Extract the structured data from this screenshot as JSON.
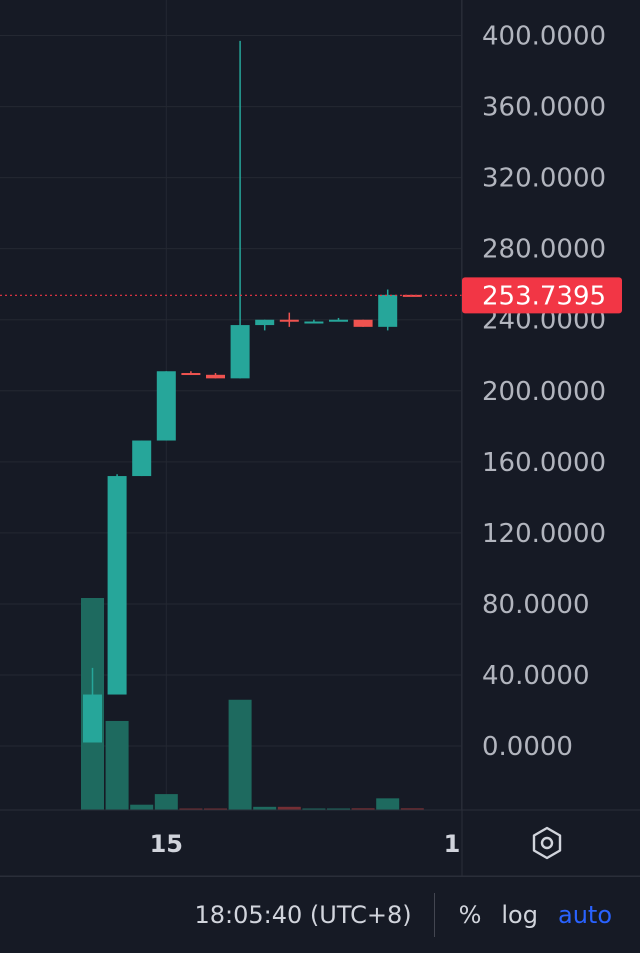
{
  "chart_data": {
    "type": "candlestick",
    "y_ticks": [
      "400.0000",
      "360.0000",
      "320.0000",
      "280.0000",
      "240.0000",
      "200.0000",
      "160.0000",
      "120.0000",
      "80.0000",
      "40.0000",
      "0.0000"
    ],
    "ylim": [
      -36,
      420
    ],
    "x_ticks": [
      {
        "label": "15",
        "index": 3
      },
      {
        "label": "1",
        "index": 15
      }
    ],
    "last_price": 253.7395,
    "last_price_label": "253.7395",
    "grid": true,
    "colors": {
      "up": "#26a69a",
      "down": "#ef5350",
      "up_volume": "#1f6f62",
      "down_volume": "#7a2f35",
      "grid": "#242832",
      "last_price": "#f23645"
    },
    "candles": [
      {
        "open": 2,
        "high": 44,
        "low": 2,
        "close": 29,
        "volume": 100
      },
      {
        "open": 29,
        "high": 153,
        "low": 29,
        "close": 152,
        "volume": 42
      },
      {
        "open": 152,
        "high": 172,
        "low": 152,
        "close": 172,
        "volume": 2.5
      },
      {
        "open": 172,
        "high": 211,
        "low": 172,
        "close": 211,
        "volume": 7.5
      },
      {
        "open": 210,
        "high": 211,
        "low": 209,
        "close": 209,
        "volume": 0.6
      },
      {
        "open": 209,
        "high": 210,
        "low": 207,
        "close": 207,
        "volume": 0.6
      },
      {
        "open": 207,
        "high": 397,
        "low": 207,
        "close": 237,
        "volume": 52
      },
      {
        "open": 237,
        "high": 240,
        "low": 234,
        "close": 240,
        "volume": 1.5
      },
      {
        "open": 240,
        "high": 244,
        "low": 236,
        "close": 239,
        "volume": 1.5
      },
      {
        "open": 239,
        "high": 240,
        "low": 238,
        "close": 239,
        "volume": 0.6
      },
      {
        "open": 239,
        "high": 241,
        "low": 239,
        "close": 240,
        "volume": 0.6
      },
      {
        "open": 240,
        "high": 240,
        "low": 236,
        "close": 236,
        "volume": 0.8
      },
      {
        "open": 236,
        "high": 257,
        "low": 234,
        "close": 254,
        "volume": 5.5
      },
      {
        "open": 254,
        "high": 254,
        "low": 253.5,
        "close": 253.74,
        "volume": 0.8
      }
    ]
  },
  "bottom_bar": {
    "clock": "18:05:40 (UTC+8)",
    "percent_label": "%",
    "log_label": "log",
    "auto_label": "auto"
  },
  "icons": {
    "settings": "hexagon-gear-icon"
  }
}
